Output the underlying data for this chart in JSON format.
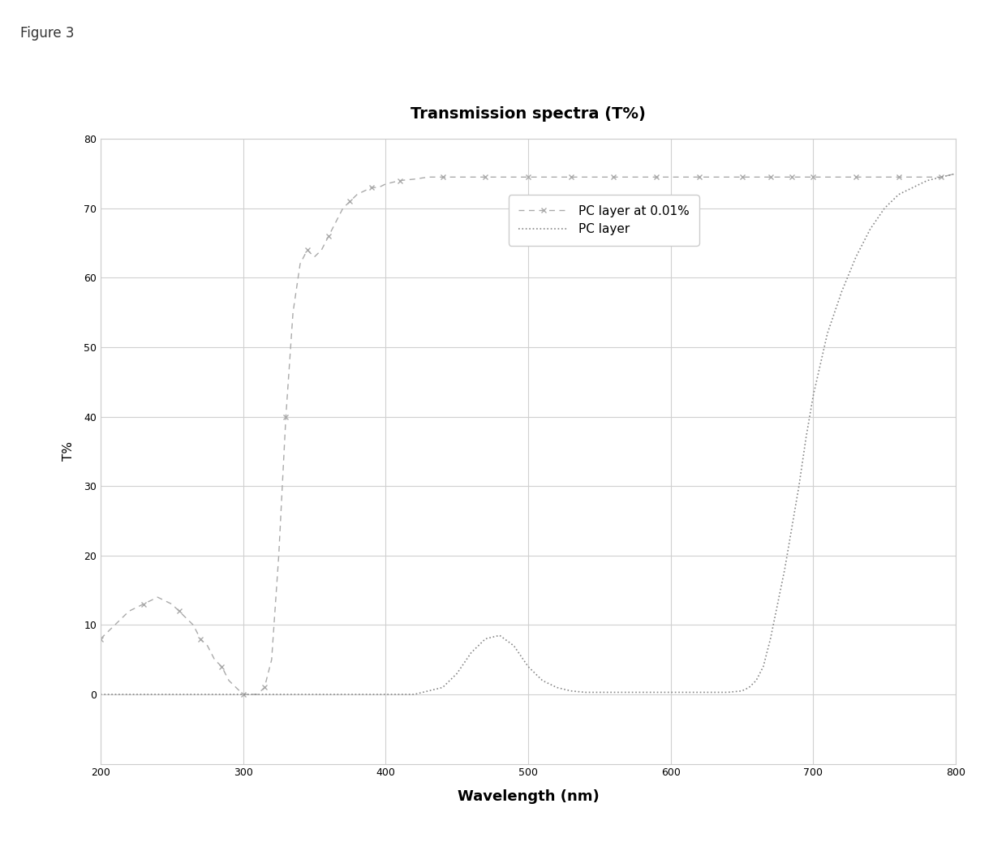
{
  "title": "Transmission spectra (T%)",
  "figure_label": "Figure 3",
  "xlabel": "Wavelength (nm)",
  "ylabel": "T%",
  "xlim": [
    200,
    800
  ],
  "ylim": [
    -10,
    80
  ],
  "xticks": [
    200,
    300,
    400,
    500,
    600,
    700,
    800
  ],
  "yticks": [
    0,
    10,
    20,
    30,
    40,
    50,
    60,
    70,
    80
  ],
  "legend_entries": [
    "PC layer at 0.01%",
    "PC layer"
  ],
  "background_color": "#ffffff",
  "grid_color": "#d0d0d0",
  "line_color_1": "#aaaaaa",
  "line_color_2": "#888888",
  "pc_layer_001_x": [
    200,
    210,
    220,
    230,
    240,
    250,
    255,
    260,
    265,
    270,
    275,
    280,
    285,
    290,
    295,
    300,
    305,
    310,
    315,
    320,
    325,
    330,
    335,
    340,
    345,
    350,
    355,
    360,
    365,
    370,
    375,
    380,
    385,
    390,
    395,
    400,
    410,
    420,
    430,
    440,
    450,
    460,
    470,
    480,
    490,
    500,
    510,
    520,
    530,
    540,
    550,
    560,
    570,
    580,
    590,
    600,
    610,
    620,
    630,
    640,
    650,
    660,
    665,
    670,
    675,
    680,
    685,
    690,
    695,
    700,
    710,
    720,
    730,
    740,
    750,
    760,
    770,
    780,
    790,
    800
  ],
  "pc_layer_001_y": [
    8,
    10,
    12,
    13,
    14,
    13,
    12,
    11,
    10,
    8,
    7,
    5,
    4,
    2,
    1,
    0,
    0,
    0,
    1,
    5,
    20,
    40,
    55,
    62,
    64,
    63,
    64,
    66,
    68,
    70,
    71,
    72,
    72.5,
    73,
    73,
    73.5,
    74,
    74.2,
    74.5,
    74.5,
    74.5,
    74.5,
    74.5,
    74.5,
    74.5,
    74.5,
    74.5,
    74.5,
    74.5,
    74.5,
    74.5,
    74.5,
    74.5,
    74.5,
    74.5,
    74.5,
    74.5,
    74.5,
    74.5,
    74.5,
    74.5,
    74.5,
    74.5,
    74.5,
    74.5,
    74.5,
    74.5,
    74.5,
    74.5,
    74.5,
    74.5,
    74.5,
    74.5,
    74.5,
    74.5,
    74.5,
    74.5,
    74.5,
    74.5,
    75
  ],
  "pc_layer_x": [
    200,
    210,
    220,
    230,
    240,
    250,
    260,
    270,
    280,
    290,
    295,
    300,
    305,
    310,
    315,
    320,
    325,
    330,
    335,
    340,
    345,
    350,
    355,
    360,
    365,
    370,
    375,
    380,
    385,
    390,
    395,
    400,
    410,
    420,
    430,
    440,
    450,
    460,
    470,
    480,
    490,
    500,
    510,
    520,
    530,
    540,
    550,
    560,
    570,
    580,
    590,
    600,
    610,
    620,
    630,
    640,
    650,
    655,
    660,
    665,
    670,
    675,
    680,
    685,
    690,
    695,
    700,
    710,
    720,
    730,
    740,
    750,
    760,
    770,
    780,
    790,
    800
  ],
  "pc_layer_y": [
    0,
    0,
    0,
    0,
    0,
    0,
    0,
    0,
    0,
    0,
    0,
    0,
    0,
    0,
    0,
    0,
    0,
    0,
    0,
    0,
    0,
    0,
    0,
    0,
    0,
    0,
    0,
    0,
    0,
    0,
    0,
    0,
    0,
    0,
    0.5,
    1,
    3,
    6,
    8,
    8.5,
    7,
    4,
    2,
    1,
    0.5,
    0.3,
    0.3,
    0.3,
    0.3,
    0.3,
    0.3,
    0.3,
    0.3,
    0.3,
    0.3,
    0.3,
    0.5,
    1,
    2,
    4,
    8,
    13,
    18,
    24,
    30,
    37,
    43,
    52,
    58,
    63,
    67,
    70,
    72,
    73,
    74,
    74.5,
    75
  ]
}
